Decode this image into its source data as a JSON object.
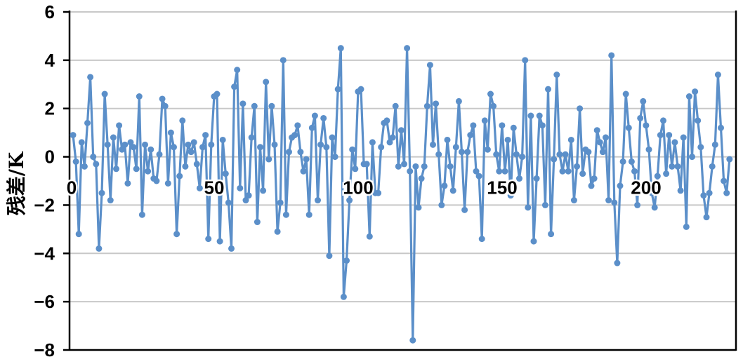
{
  "chart_data": {
    "type": "line",
    "title": "",
    "xlabel": "",
    "ylabel": "残差/K",
    "xlim": [
      0,
      230
    ],
    "ylim": [
      -8,
      6
    ],
    "y_ticks": [
      6,
      4,
      2,
      0,
      -2,
      -4,
      -6,
      -8
    ],
    "y_tick_labels": [
      "6",
      "4",
      "2",
      "0",
      "−2",
      "−4",
      "−6",
      "−8"
    ],
    "x_ticks": [
      0,
      50,
      100,
      150,
      200
    ],
    "x_tick_labels": [
      "0",
      "50",
      "100",
      "150",
      "200"
    ],
    "grid": "horizontal",
    "legend": "none",
    "colors": {
      "series": "#5b8fc9",
      "grid": "#c8c8c8",
      "axis": "#000000"
    },
    "series": [
      {
        "values": [
          0.9,
          -0.2,
          -3.2,
          0.6,
          -0.4,
          1.4,
          3.3,
          0.0,
          -0.3,
          -3.8,
          -1.5,
          2.6,
          0.5,
          -1.8,
          0.8,
          -0.5,
          1.3,
          0.3,
          0.5,
          -1.1,
          0.6,
          0.4,
          -0.5,
          2.5,
          -2.4,
          0.5,
          -0.6,
          0.3,
          -0.9,
          -1.0,
          0.1,
          2.4,
          2.1,
          -1.1,
          1.0,
          0.4,
          -3.2,
          -0.8,
          1.5,
          -0.4,
          0.5,
          0.2,
          0.6,
          -0.3,
          -1.3,
          0.4,
          0.9,
          -3.4,
          0.5,
          2.5,
          2.6,
          -3.5,
          0.7,
          -0.7,
          -1.9,
          -3.8,
          2.9,
          3.6,
          -1.3,
          2.2,
          -1.8,
          -1.6,
          0.8,
          2.1,
          -2.7,
          0.4,
          -1.4,
          3.1,
          -0.1,
          2.1,
          0.5,
          -3.1,
          -1.9,
          4.0,
          -2.4,
          0.2,
          0.8,
          0.9,
          1.3,
          0.2,
          -0.6,
          -0.1,
          -2.4,
          1.2,
          1.7,
          -1.8,
          0.5,
          1.6,
          0.4,
          -4.1,
          0.8,
          0.0,
          2.8,
          4.5,
          -5.8,
          -4.3,
          -1.8,
          0.3,
          -0.5,
          2.7,
          2.8,
          -0.3,
          -0.3,
          -3.3,
          0.6,
          -1.5,
          -1.5,
          0.4,
          1.4,
          1.5,
          0.6,
          0.8,
          2.1,
          -0.4,
          1.1,
          -0.3,
          4.5,
          -0.6,
          -7.6,
          -0.4,
          -2.1,
          -0.9,
          -0.4,
          2.1,
          3.8,
          0.5,
          2.2,
          0.1,
          -2.0,
          -1.2,
          0.7,
          -0.4,
          -1.4,
          0.4,
          2.3,
          0.2,
          -2.2,
          0.2,
          0.9,
          1.3,
          -0.6,
          -0.8,
          -3.4,
          1.5,
          0.3,
          2.6,
          2.1,
          0.1,
          -0.6,
          1.3,
          -0.6,
          0.7,
          -1.6,
          1.2,
          0.1,
          -0.9,
          0.0,
          4.0,
          -2.1,
          1.7,
          -3.5,
          -0.9,
          1.7,
          1.3,
          -2.0,
          2.8,
          -3.2,
          -0.1,
          3.4,
          0.1,
          -0.6,
          0.1,
          -0.6,
          0.7,
          -1.8,
          -0.4,
          2.0,
          -0.7,
          0.3,
          0.2,
          -1.2,
          -0.9,
          1.1,
          0.6,
          0.2,
          0.8,
          -1.8,
          4.2,
          -1.9,
          -4.4,
          -1.2,
          -0.2,
          2.6,
          1.2,
          -0.2,
          -0.6,
          -2.0,
          1.6,
          2.3,
          1.3,
          0.3,
          -1.5,
          -2.1,
          -0.8,
          0.9,
          1.5,
          -0.7,
          0.9,
          -0.4,
          0.6,
          -0.4,
          -1.4,
          0.8,
          -2.9,
          2.5,
          0.0,
          2.7,
          1.5,
          0.4,
          -1.6,
          -2.5,
          -1.5,
          -0.4,
          0.5,
          3.4,
          1.2,
          -1.0,
          -1.5,
          -0.1
        ]
      }
    ]
  }
}
